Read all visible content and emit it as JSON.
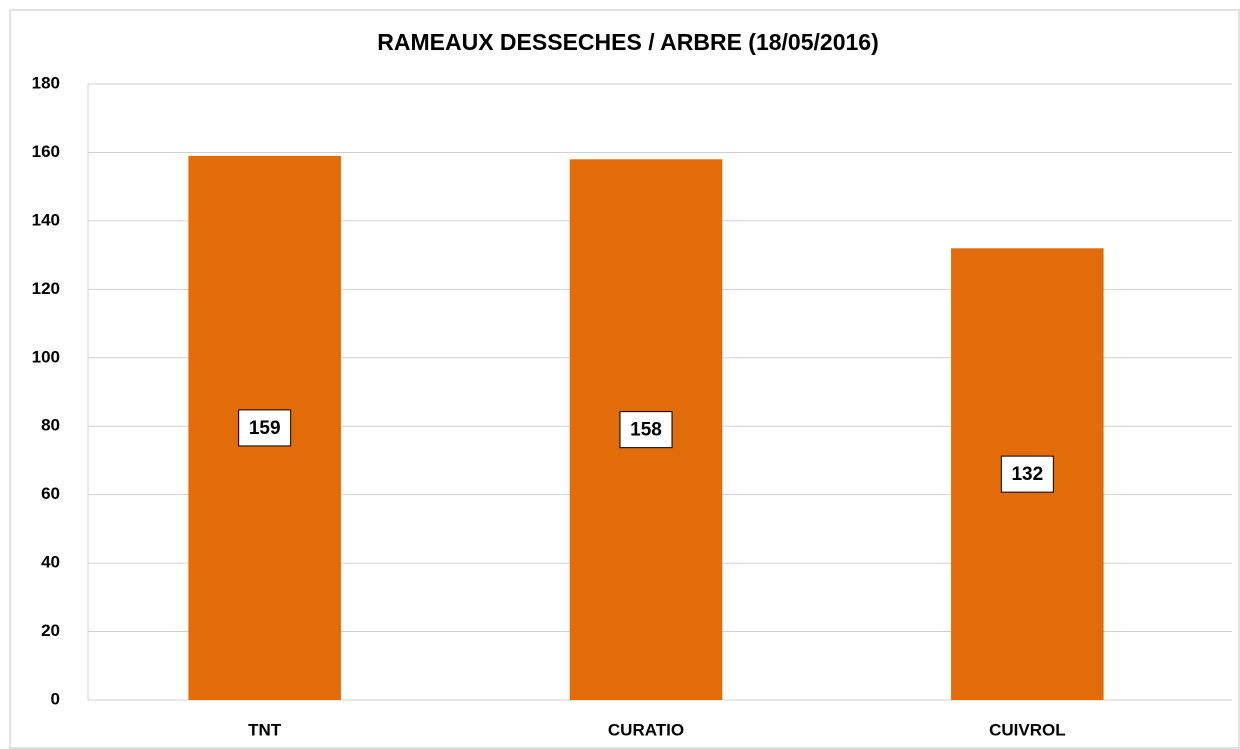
{
  "chart_data": {
    "type": "bar",
    "title": "RAMEAUX DESSECHES / ARBRE (18/05/2016)",
    "categories": [
      "TNT",
      "CURATIO",
      "CUIVROL"
    ],
    "values": [
      159,
      158,
      132
    ],
    "color": "#e36c0a",
    "ylim": [
      0,
      180
    ],
    "yticks": [
      0,
      20,
      40,
      60,
      80,
      100,
      120,
      140,
      160,
      180
    ],
    "grid": true
  }
}
